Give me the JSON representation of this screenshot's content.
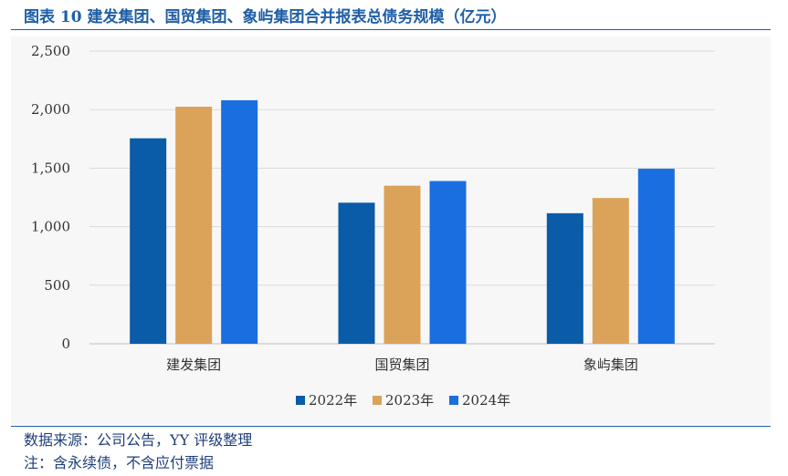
{
  "header": {
    "title": "图表 10 建发集团、国贸集团、象屿集团合并报表总债务规模（亿元）"
  },
  "footer": {
    "source": "数据来源：公司公告，YY 评级整理",
    "note": "注：含永续债，不含应付票据"
  },
  "chart_data": {
    "type": "bar",
    "title": "图表 10 建发集团、国贸集团、象屿集团合并报表总债务规模（亿元）",
    "categories": [
      "建发集团",
      "国贸集团",
      "象屿集团"
    ],
    "series": [
      {
        "name": "2022年",
        "color": "#0a5ca8",
        "values": [
          1755,
          1205,
          1115
        ]
      },
      {
        "name": "2023年",
        "color": "#dba35a",
        "values": [
          2025,
          1350,
          1245
        ]
      },
      {
        "name": "2024年",
        "color": "#1a6ee0",
        "values": [
          2080,
          1390,
          1495
        ]
      }
    ],
    "ylim": [
      0,
      2500
    ],
    "yticks": [
      0,
      500,
      1000,
      1500,
      2000,
      2500
    ],
    "ytick_labels": [
      "0",
      "500",
      "1,000",
      "1,500",
      "2,000",
      "2,500"
    ],
    "grid": true,
    "legend_position": "bottom"
  }
}
